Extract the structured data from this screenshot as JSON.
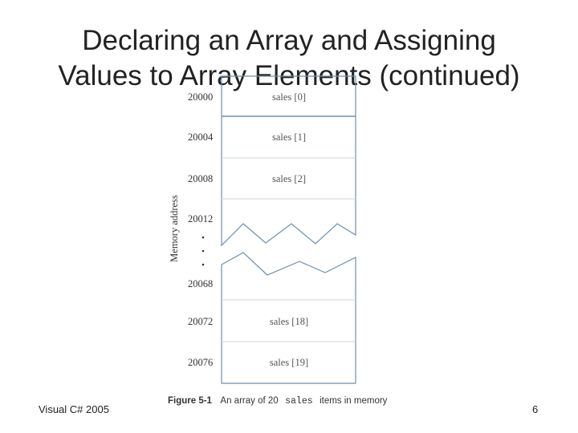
{
  "title": {
    "line1": "Declaring an Array and Assigning",
    "line2": "Values to Array Elements (continued)"
  },
  "figure": {
    "axis_label": "Memory address",
    "addresses": [
      "20000",
      "20004",
      "20008",
      "20012",
      "20068",
      "20072",
      "20076"
    ],
    "cells": [
      "sales [0]",
      "sales [1]",
      "sales [2]",
      "sales [18]",
      "sales [19]"
    ],
    "caption": {
      "number": "Figure 5-1",
      "text_before": "An array of 20",
      "code": "sales",
      "text_after": "items in memory"
    }
  },
  "footer": {
    "course": "Visual C# 2005",
    "page_number": "6"
  }
}
